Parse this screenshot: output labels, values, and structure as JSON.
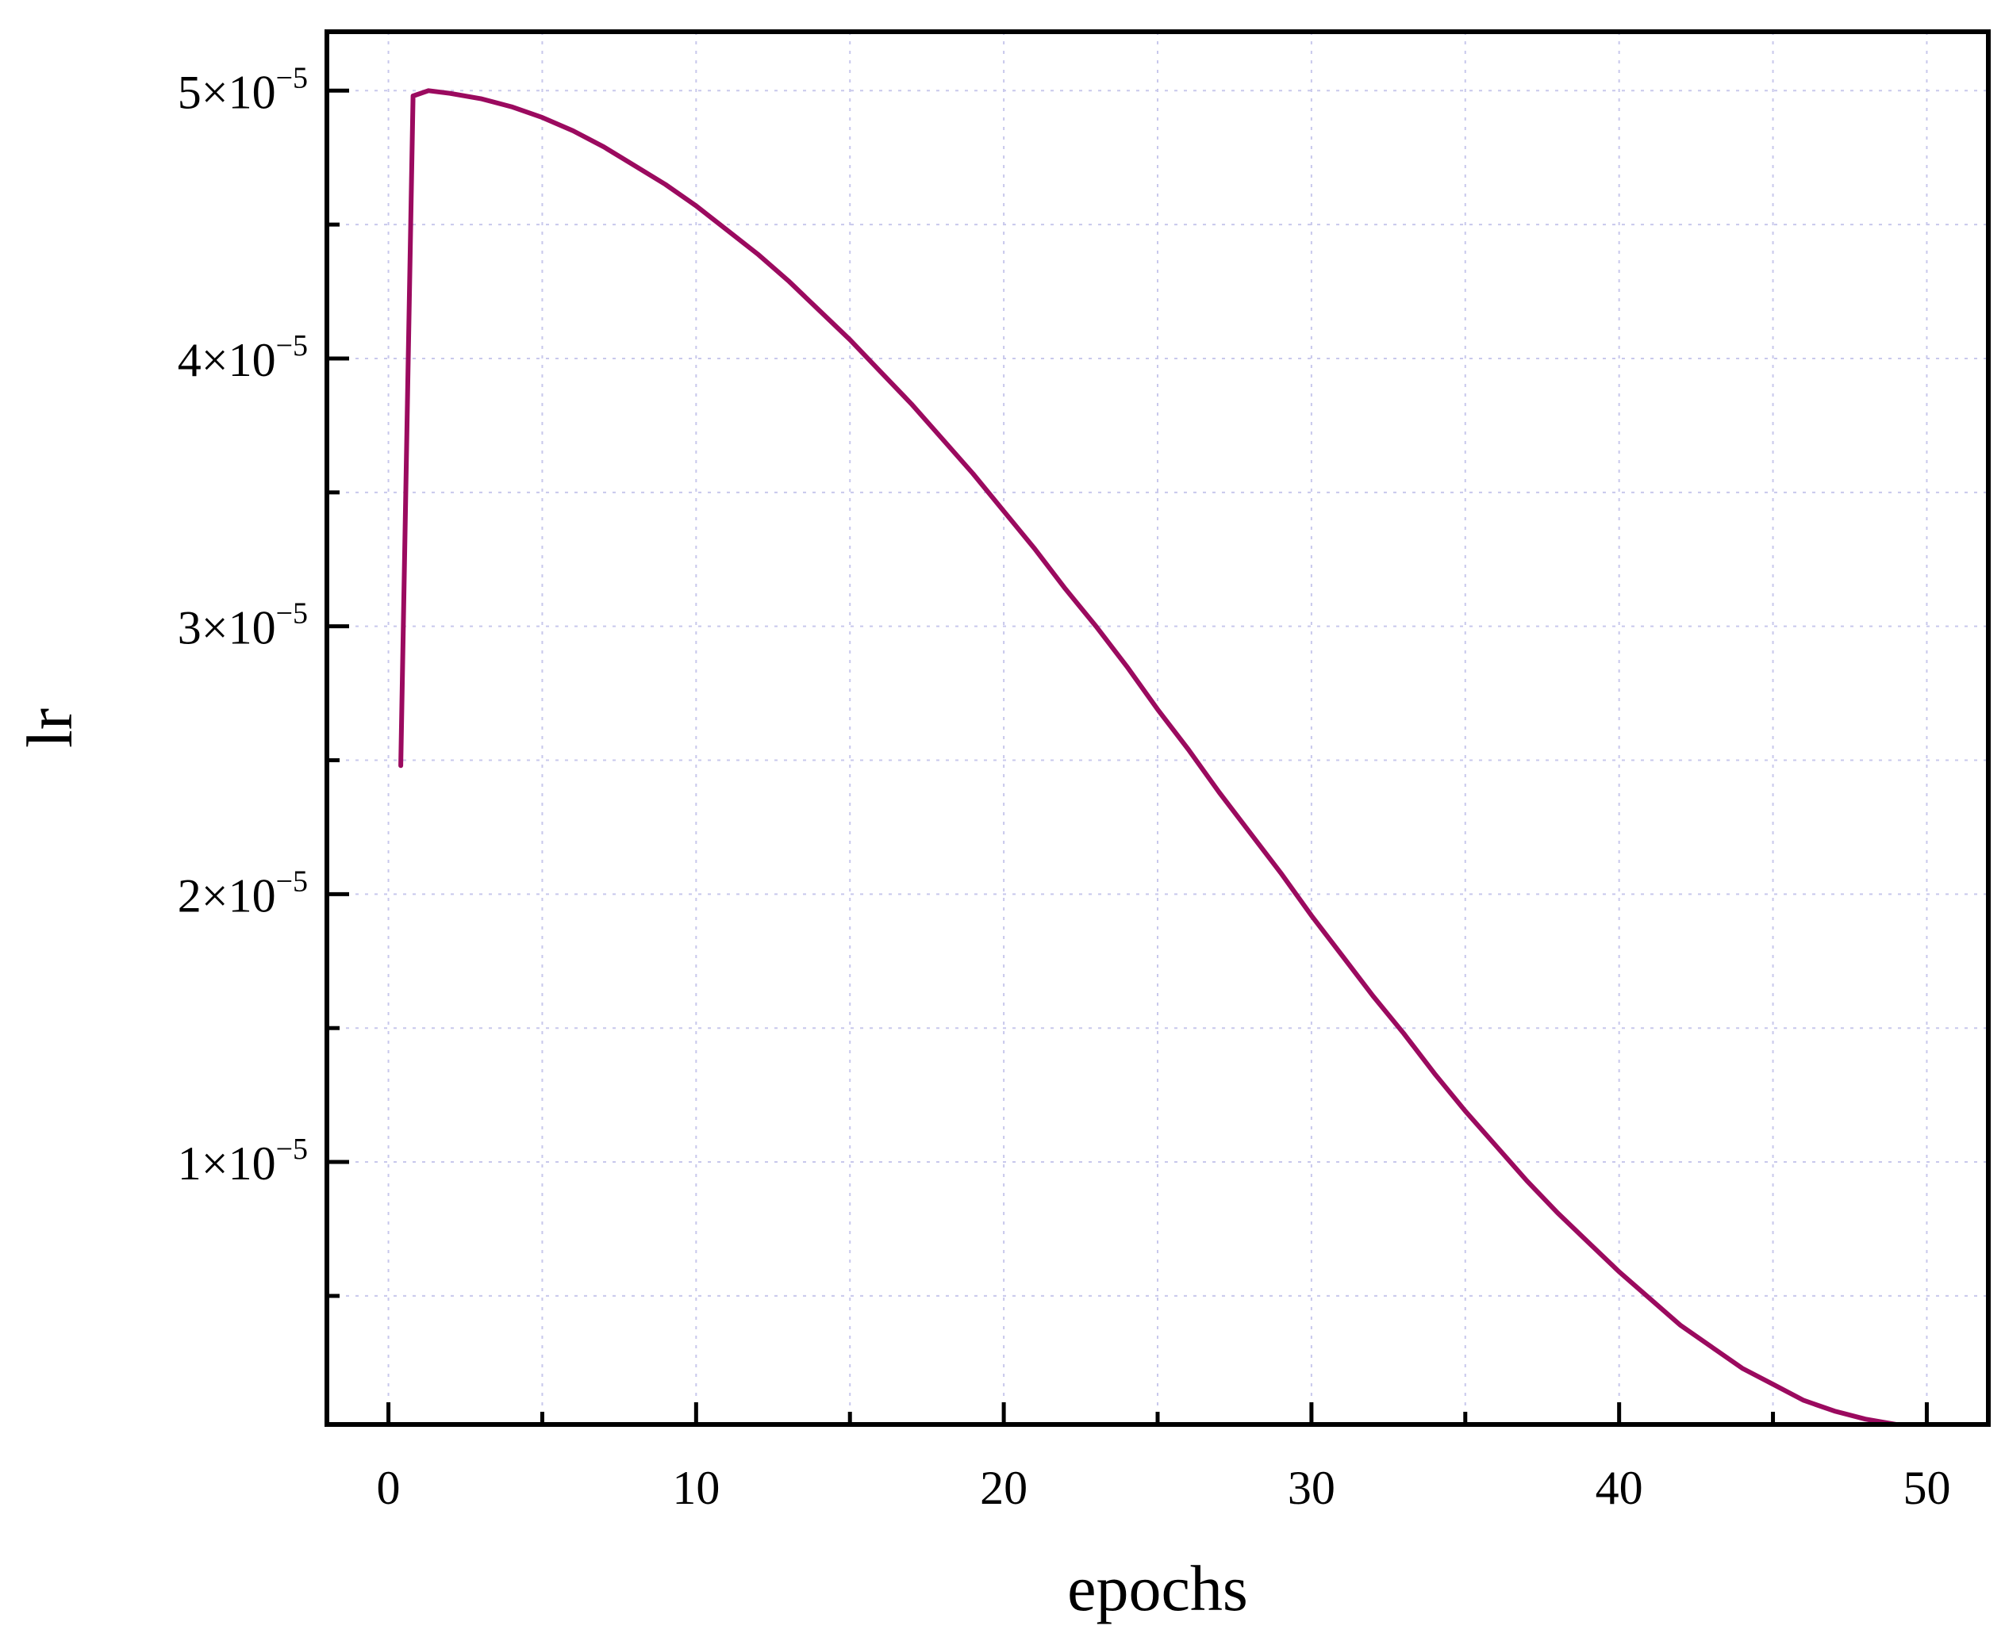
{
  "chart_data": {
    "type": "line",
    "title": "",
    "xlabel": "epochs",
    "ylabel": "lr",
    "xlim": [
      -2,
      52
    ],
    "ylim": [
      2e-07,
      5.22e-05
    ],
    "grid": true,
    "legend": "none",
    "x_ticks": [
      0,
      10,
      20,
      30,
      40,
      50
    ],
    "x_tick_labels": [
      "0",
      "10",
      "20",
      "30",
      "40",
      "50"
    ],
    "x_minor_ticks": [
      5,
      15,
      25,
      35,
      45
    ],
    "y_ticks": [
      1e-05,
      2e-05,
      3e-05,
      4e-05,
      5e-05
    ],
    "y_tick_labels": [
      {
        "mantissa": "1",
        "times": "×",
        "base": "10",
        "exponent": "−5"
      },
      {
        "mantissa": "2",
        "times": "×",
        "base": "10",
        "exponent": "−5"
      },
      {
        "mantissa": "3",
        "times": "×",
        "base": "10",
        "exponent": "−5"
      },
      {
        "mantissa": "4",
        "times": "×",
        "base": "10",
        "exponent": "−5"
      },
      {
        "mantissa": "5",
        "times": "×",
        "base": "10",
        "exponent": "−5"
      }
    ],
    "y_minor_ticks": [
      5e-06,
      1.5e-05,
      2.5e-05,
      3.5e-05,
      4.5e-05
    ],
    "series": [
      {
        "color": "#9b0a5f",
        "x": [
          0.4,
          0.8,
          1.3,
          2,
          3,
          4,
          5,
          6,
          7,
          8,
          9,
          10,
          11,
          12,
          13,
          14,
          15,
          16,
          17,
          18,
          19,
          20,
          21,
          22,
          23,
          24,
          25,
          26,
          27,
          28,
          29,
          30,
          31,
          32,
          33,
          34,
          35,
          36,
          37,
          38,
          39,
          40,
          41,
          42,
          43,
          44,
          45,
          46,
          47,
          48,
          49,
          50
        ],
        "y": [
          2.48e-05,
          4.98e-05,
          5e-05,
          4.99e-05,
          4.97e-05,
          4.94e-05,
          4.9e-05,
          4.85e-05,
          4.79e-05,
          4.72e-05,
          4.65e-05,
          4.57e-05,
          4.48e-05,
          4.39e-05,
          4.29e-05,
          4.18e-05,
          4.07e-05,
          3.95e-05,
          3.83e-05,
          3.7e-05,
          3.57e-05,
          3.43e-05,
          3.29e-05,
          3.14e-05,
          3e-05,
          2.85e-05,
          2.69e-05,
          2.54e-05,
          2.38e-05,
          2.23e-05,
          2.08e-05,
          1.92e-05,
          1.77e-05,
          1.62e-05,
          1.48e-05,
          1.33e-05,
          1.19e-05,
          1.06e-05,
          9.3e-06,
          8.1e-06,
          7e-06,
          5.9e-06,
          4.9e-06,
          3.9e-06,
          3.1e-06,
          2.3e-06,
          1.7e-06,
          1.1e-06,
          7e-07,
          4e-07,
          2e-07,
          2e-07
        ]
      }
    ]
  }
}
